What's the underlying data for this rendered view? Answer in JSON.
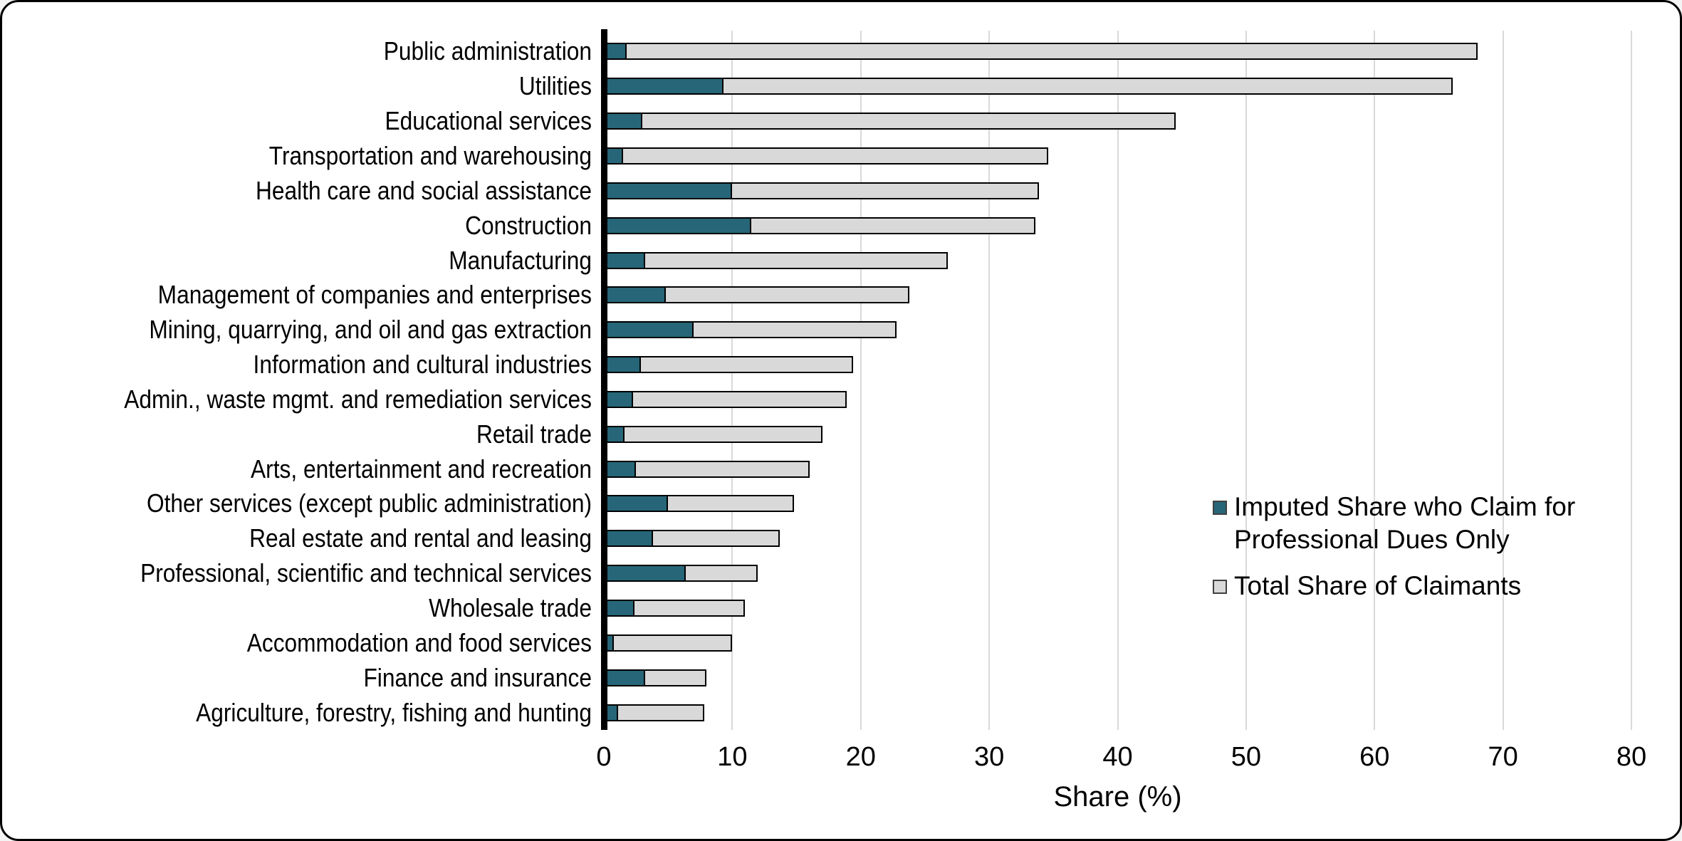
{
  "frame": {
    "background": "#ffffff",
    "border_color": "#000000"
  },
  "axis": {
    "x_title": "Share (%)"
  },
  "legend": {
    "imputed_label": "Imputed Share who Claim for Professional Dues Only",
    "total_label": "Total Share of Claimants"
  },
  "chart_data": {
    "type": "bar",
    "orientation": "horizontal",
    "title": "",
    "xlabel": "Share (%)",
    "ylabel": "",
    "xlim": [
      0,
      80
    ],
    "x_ticks": [
      0,
      10,
      20,
      30,
      40,
      50,
      60,
      70,
      80
    ],
    "grid": "vertical light-gray gridlines at each x tick",
    "bar_style": "overlapped: imputed-share bar drawn from 0 on top of total-share bar, both outlined in black",
    "legend_position": "middle-right",
    "categories": [
      "Public administration",
      "Utilities",
      "Educational services",
      "Transportation and warehousing",
      "Health care and social assistance",
      "Construction",
      "Manufacturing",
      "Management of companies and enterprises",
      "Mining, quarrying, and oil and gas extraction",
      "Information and cultural industries",
      "Admin., waste mgmt. and remediation services",
      "Retail trade",
      "Arts, entertainment and recreation",
      "Other services (except public administration)",
      "Real estate and rental and leasing",
      "Professional, scientific and technical services",
      "Wholesale trade",
      "Accommodation and food services",
      "Finance and insurance",
      "Agriculture, forestry, fishing and hunting"
    ],
    "series": [
      {
        "name": "Imputed Share who Claim for Professional Dues Only",
        "color": "#266678",
        "values": [
          1.8,
          9.3,
          3.0,
          1.5,
          10.0,
          11.5,
          3.2,
          4.8,
          7.0,
          2.9,
          2.3,
          1.6,
          2.5,
          5.0,
          3.8,
          6.4,
          2.4,
          0.8,
          3.2,
          1.1
        ]
      },
      {
        "name": "Total Share of Claimants",
        "color": "#d9d9d9",
        "values": [
          68.0,
          66.1,
          44.5,
          34.6,
          33.9,
          33.6,
          26.8,
          23.8,
          22.8,
          19.4,
          18.9,
          17.0,
          16.0,
          14.8,
          13.7,
          12.0,
          11.0,
          10.0,
          8.0,
          7.8
        ]
      }
    ],
    "colors": {
      "imputed_fill": "#266678",
      "total_fill": "#d9d9d9",
      "bar_outline": "#000000",
      "gridline": "#d9d9d9",
      "axis_line": "#000000",
      "text": "#000000"
    }
  }
}
